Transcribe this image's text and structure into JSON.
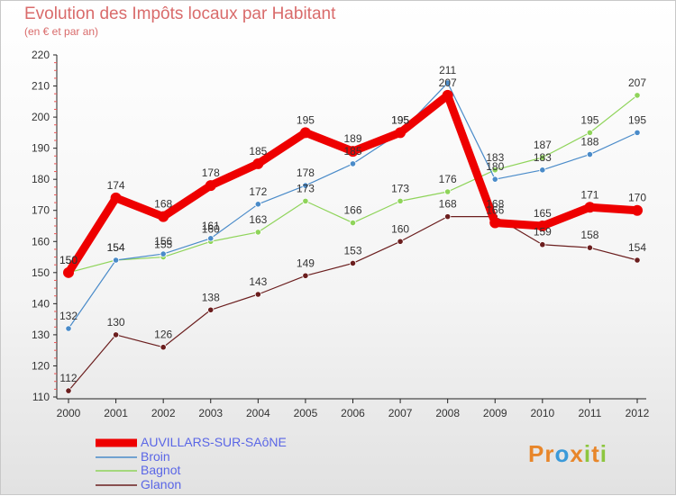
{
  "header": {
    "title": "Evolution des Impôts locaux par Habitant",
    "subtitle": "(en € et par an)"
  },
  "logo": {
    "text": "Proxiti",
    "letters": [
      "P",
      "r",
      "o",
      "x",
      "i",
      "t",
      "i"
    ],
    "colors": [
      "#e8862a",
      "#e8862a",
      "#3b9ad9",
      "#e8862a",
      "#8dc63f",
      "#e8862a",
      "#8dc63f"
    ]
  },
  "chart_data": {
    "type": "line",
    "title": "Evolution des Impôts locaux par Habitant",
    "subtitle": "(en € et par an)",
    "xlabel": "",
    "ylabel": "",
    "ylim": [
      110,
      220
    ],
    "yticks": [
      110,
      120,
      130,
      140,
      150,
      160,
      170,
      180,
      190,
      200,
      210,
      220
    ],
    "grid": false,
    "legend": "bottom-left",
    "categories": [
      "2000",
      "2001",
      "2002",
      "2003",
      "2004",
      "2005",
      "2006",
      "2007",
      "2008",
      "2009",
      "2010",
      "2011",
      "2012"
    ],
    "series": [
      {
        "name": "AUVILLARS-SUR-SAôNE",
        "color": "#ee0000",
        "values": [
          150,
          174,
          168,
          178,
          185,
          195,
          189,
          195,
          207,
          166,
          165,
          171,
          170
        ]
      },
      {
        "name": "Broin",
        "color": "#4a8bc9",
        "values": [
          132,
          154,
          156,
          161,
          172,
          178,
          185,
          195,
          211,
          180,
          183,
          188,
          195
        ]
      },
      {
        "name": "Bagnot",
        "color": "#8fd45a",
        "values": [
          150,
          154,
          155,
          160,
          163,
          173,
          166,
          173,
          176,
          183,
          187,
          195,
          207
        ]
      },
      {
        "name": "Glanon",
        "color": "#6b1e1e",
        "values": [
          112,
          130,
          126,
          138,
          143,
          149,
          153,
          160,
          168,
          168,
          159,
          158,
          154
        ]
      }
    ]
  }
}
